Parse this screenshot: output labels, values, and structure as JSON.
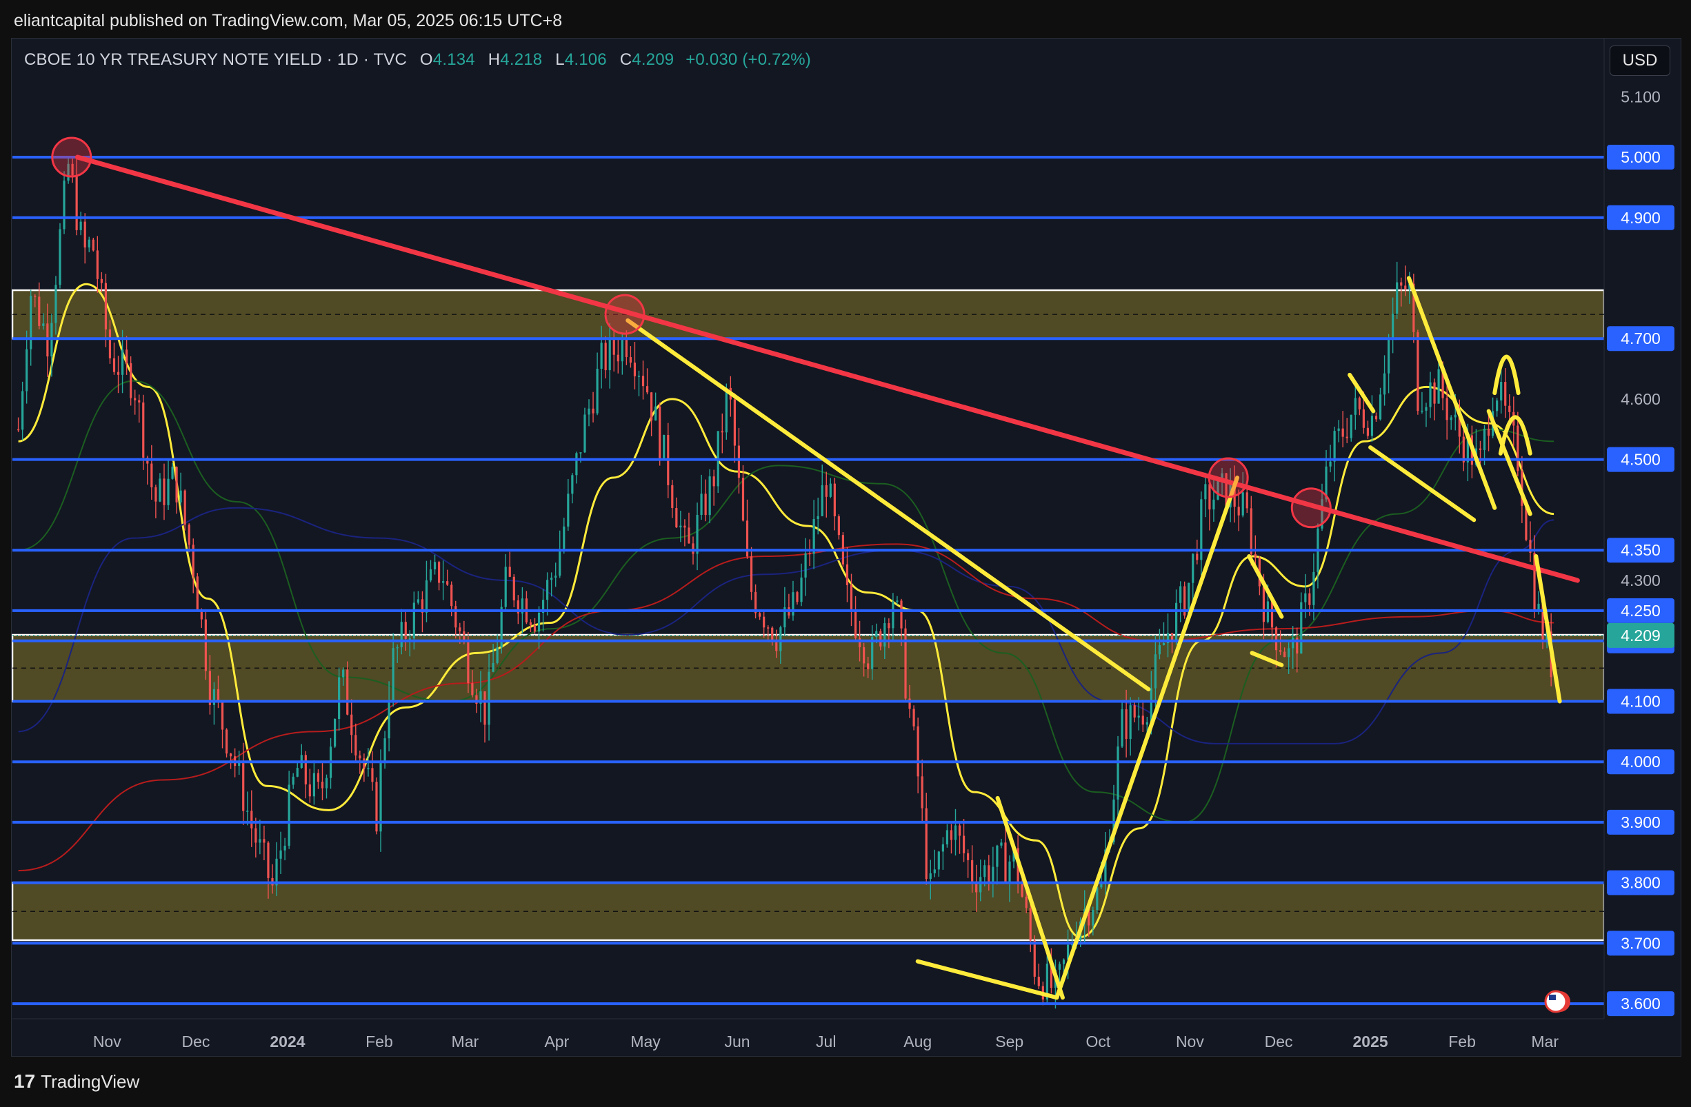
{
  "header": {
    "published_text": "eliantcapital published on TradingView.com, Mar 05, 2025 06:15 UTC+8"
  },
  "legend": {
    "symbol": "CBOE 10 YR TREASURY NOTE YIELD · 1D · TVC",
    "open_label": "O",
    "open_value": "4.134",
    "high_label": "H",
    "high_value": "4.218",
    "low_label": "L",
    "low_value": "4.106",
    "close_label": "C",
    "close_value": "4.209",
    "change_value": "+0.030 (+0.72%)"
  },
  "currency_button": "USD",
  "footer": {
    "logo_mark": "17",
    "logo_text": "TradingView"
  },
  "colors": {
    "background": "#131722",
    "up": "#26a69a",
    "down": "#ef5350",
    "level_line": "#2962ff",
    "trendline_red": "#f23645",
    "annotation_yellow": "#ffeb3b",
    "zone_fill": "#5c5426",
    "last_price": "#26a69a"
  },
  "icons": {
    "flag": "us-flag-icon"
  },
  "chart_data": {
    "type": "candlestick",
    "title": "CBOE 10 YR TREASURY NOTE YIELD",
    "interval": "1D",
    "ylim": [
      3.575,
      5.195
    ],
    "y_ticks": [
      "5.100",
      "4.600",
      "4.300"
    ],
    "x_ticks": [
      {
        "label": "Nov",
        "date": "2023-11-01",
        "bold": false
      },
      {
        "label": "Dec",
        "date": "2023-12-01",
        "bold": false
      },
      {
        "label": "2024",
        "date": "2024-01-01",
        "bold": true
      },
      {
        "label": "Feb",
        "date": "2024-02-01",
        "bold": false
      },
      {
        "label": "Mar",
        "date": "2024-03-01",
        "bold": false
      },
      {
        "label": "Apr",
        "date": "2024-04-01",
        "bold": false
      },
      {
        "label": "May",
        "date": "2024-05-01",
        "bold": false
      },
      {
        "label": "Jun",
        "date": "2024-06-01",
        "bold": false
      },
      {
        "label": "Jul",
        "date": "2024-07-01",
        "bold": false
      },
      {
        "label": "Aug",
        "date": "2024-08-01",
        "bold": false
      },
      {
        "label": "Sep",
        "date": "2024-09-01",
        "bold": false
      },
      {
        "label": "Oct",
        "date": "2024-10-01",
        "bold": false
      },
      {
        "label": "Nov",
        "date": "2024-11-01",
        "bold": false
      },
      {
        "label": "Dec",
        "date": "2024-12-01",
        "bold": false
      },
      {
        "label": "2025",
        "date": "2025-01-01",
        "bold": true
      },
      {
        "label": "Feb",
        "date": "2025-02-01",
        "bold": false
      },
      {
        "label": "Mar",
        "date": "2025-03-01",
        "bold": false
      }
    ],
    "horizontal_levels": [
      {
        "value": 5.0,
        "label": "5.000"
      },
      {
        "value": 4.9,
        "label": "4.900"
      },
      {
        "value": 4.7,
        "label": "4.700"
      },
      {
        "value": 4.5,
        "label": "4.500"
      },
      {
        "value": 4.35,
        "label": "4.350"
      },
      {
        "value": 4.25,
        "label": "4.250"
      },
      {
        "value": 4.2,
        "label": "4.200"
      },
      {
        "value": 4.1,
        "label": "4.100"
      },
      {
        "value": 4.0,
        "label": "4.000"
      },
      {
        "value": 3.9,
        "label": "3.900"
      },
      {
        "value": 3.8,
        "label": "3.800"
      },
      {
        "value": 3.7,
        "label": "3.700"
      },
      {
        "value": 3.6,
        "label": "3.600"
      }
    ],
    "zones": [
      {
        "top": 4.78,
        "bottom": 4.7
      },
      {
        "top": 4.21,
        "bottom": 4.1
      },
      {
        "top": 3.8,
        "bottom": 3.705
      }
    ],
    "last_price": {
      "value": 4.209,
      "label": "4.209"
    },
    "close_path": [
      [
        "2023-10-02",
        4.55
      ],
      [
        "2023-10-06",
        4.78
      ],
      [
        "2023-10-12",
        4.7
      ],
      [
        "2023-10-19",
        4.99
      ],
      [
        "2023-10-24",
        4.84
      ],
      [
        "2023-10-27",
        4.86
      ],
      [
        "2023-11-02",
        4.67
      ],
      [
        "2023-11-10",
        4.63
      ],
      [
        "2023-11-17",
        4.43
      ],
      [
        "2023-11-24",
        4.47
      ],
      [
        "2023-11-30",
        4.33
      ],
      [
        "2023-12-06",
        4.12
      ],
      [
        "2023-12-13",
        4.02
      ],
      [
        "2023-12-20",
        3.89
      ],
      [
        "2023-12-27",
        3.79
      ],
      [
        "2024-01-04",
        3.99
      ],
      [
        "2024-01-12",
        3.94
      ],
      [
        "2024-01-19",
        4.14
      ],
      [
        "2024-01-31",
        3.91
      ],
      [
        "2024-02-05",
        4.16
      ],
      [
        "2024-02-14",
        4.26
      ],
      [
        "2024-02-22",
        4.32
      ],
      [
        "2024-03-01",
        4.18
      ],
      [
        "2024-03-08",
        4.08
      ],
      [
        "2024-03-15",
        4.3
      ],
      [
        "2024-03-25",
        4.24
      ],
      [
        "2024-04-01",
        4.33
      ],
      [
        "2024-04-10",
        4.55
      ],
      [
        "2024-04-16",
        4.66
      ],
      [
        "2024-04-25",
        4.7
      ],
      [
        "2024-05-01",
        4.63
      ],
      [
        "2024-05-08",
        4.49
      ],
      [
        "2024-05-15",
        4.34
      ],
      [
        "2024-05-24",
        4.47
      ],
      [
        "2024-05-29",
        4.62
      ],
      [
        "2024-06-05",
        4.29
      ],
      [
        "2024-06-14",
        4.21
      ],
      [
        "2024-06-21",
        4.26
      ],
      [
        "2024-07-01",
        4.47
      ],
      [
        "2024-07-08",
        4.27
      ],
      [
        "2024-07-16",
        4.17
      ],
      [
        "2024-07-24",
        4.28
      ],
      [
        "2024-08-01",
        3.98
      ],
      [
        "2024-08-05",
        3.78
      ],
      [
        "2024-08-12",
        3.9
      ],
      [
        "2024-08-20",
        3.81
      ],
      [
        "2024-08-27",
        3.83
      ],
      [
        "2024-09-03",
        3.84
      ],
      [
        "2024-09-10",
        3.65
      ],
      [
        "2024-09-17",
        3.62
      ],
      [
        "2024-09-24",
        3.74
      ],
      [
        "2024-10-02",
        3.79
      ],
      [
        "2024-10-09",
        4.06
      ],
      [
        "2024-10-17",
        4.09
      ],
      [
        "2024-10-24",
        4.21
      ],
      [
        "2024-10-31",
        4.28
      ],
      [
        "2024-11-06",
        4.43
      ],
      [
        "2024-11-13",
        4.45
      ],
      [
        "2024-11-20",
        4.41
      ],
      [
        "2024-11-27",
        4.24
      ],
      [
        "2024-12-05",
        4.17
      ],
      [
        "2024-12-11",
        4.27
      ],
      [
        "2024-12-18",
        4.5
      ],
      [
        "2024-12-26",
        4.58
      ],
      [
        "2025-01-02",
        4.57
      ],
      [
        "2025-01-10",
        4.77
      ],
      [
        "2025-01-14",
        4.79
      ],
      [
        "2025-01-17",
        4.61
      ],
      [
        "2025-01-24",
        4.62
      ],
      [
        "2025-01-31",
        4.54
      ],
      [
        "2025-02-07",
        4.49
      ],
      [
        "2025-02-12",
        4.63
      ],
      [
        "2025-02-20",
        4.5
      ],
      [
        "2025-02-26",
        4.26
      ],
      [
        "2025-03-03",
        4.16
      ],
      [
        "2025-03-04",
        4.209
      ]
    ],
    "moving_averages": [
      {
        "name": "",
        "color": "#ffeb3b",
        "points": [
          [
            "2023-10-02",
            4.53
          ],
          [
            "2023-10-25",
            4.79
          ],
          [
            "2023-11-15",
            4.62
          ],
          [
            "2023-12-05",
            4.27
          ],
          [
            "2023-12-25",
            3.96
          ],
          [
            "2024-01-15",
            3.92
          ],
          [
            "2024-02-10",
            4.09
          ],
          [
            "2024-03-05",
            4.18
          ],
          [
            "2024-03-30",
            4.23
          ],
          [
            "2024-04-20",
            4.47
          ],
          [
            "2024-05-10",
            4.6
          ],
          [
            "2024-06-01",
            4.48
          ],
          [
            "2024-06-25",
            4.39
          ],
          [
            "2024-07-15",
            4.28
          ],
          [
            "2024-08-01",
            4.25
          ],
          [
            "2024-08-20",
            3.95
          ],
          [
            "2024-09-10",
            3.87
          ],
          [
            "2024-09-25",
            3.71
          ],
          [
            "2024-10-15",
            3.89
          ],
          [
            "2024-11-05",
            4.2
          ],
          [
            "2024-11-22",
            4.34
          ],
          [
            "2024-12-10",
            4.29
          ],
          [
            "2024-12-30",
            4.53
          ],
          [
            "2025-01-20",
            4.62
          ],
          [
            "2025-02-10",
            4.56
          ],
          [
            "2025-03-04",
            4.41
          ]
        ]
      },
      {
        "name": "",
        "color": "#1b5e20",
        "points": [
          [
            "2023-10-02",
            4.35
          ],
          [
            "2023-11-10",
            4.63
          ],
          [
            "2023-12-15",
            4.43
          ],
          [
            "2024-01-20",
            4.14
          ],
          [
            "2024-02-25",
            4.1
          ],
          [
            "2024-03-30",
            4.22
          ],
          [
            "2024-05-10",
            4.37
          ],
          [
            "2024-06-15",
            4.49
          ],
          [
            "2024-07-20",
            4.46
          ],
          [
            "2024-08-30",
            4.18
          ],
          [
            "2024-09-30",
            3.95
          ],
          [
            "2024-10-30",
            3.9
          ],
          [
            "2024-12-01",
            4.2
          ],
          [
            "2025-01-10",
            4.41
          ],
          [
            "2025-02-10",
            4.55
          ],
          [
            "2025-03-04",
            4.53
          ]
        ]
      },
      {
        "name": "",
        "color": "#1a237e",
        "points": [
          [
            "2023-10-02",
            4.05
          ],
          [
            "2023-11-10",
            4.37
          ],
          [
            "2023-12-15",
            4.42
          ],
          [
            "2024-02-01",
            4.37
          ],
          [
            "2024-03-15",
            4.3
          ],
          [
            "2024-04-25",
            4.21
          ],
          [
            "2024-06-10",
            4.31
          ],
          [
            "2024-07-25",
            4.35
          ],
          [
            "2024-09-01",
            4.29
          ],
          [
            "2024-10-05",
            4.1
          ],
          [
            "2024-11-10",
            4.03
          ],
          [
            "2024-12-20",
            4.03
          ],
          [
            "2025-01-25",
            4.18
          ],
          [
            "2025-02-20",
            4.35
          ],
          [
            "2025-03-04",
            4.4
          ]
        ]
      },
      {
        "name": "",
        "color": "#b71c1c",
        "points": [
          [
            "2023-10-02",
            3.82
          ],
          [
            "2023-11-20",
            3.97
          ],
          [
            "2024-01-10",
            4.05
          ],
          [
            "2024-03-01",
            4.13
          ],
          [
            "2024-04-20",
            4.25
          ],
          [
            "2024-06-10",
            4.34
          ],
          [
            "2024-07-25",
            4.36
          ],
          [
            "2024-09-10",
            4.27
          ],
          [
            "2024-10-20",
            4.2
          ],
          [
            "2024-12-01",
            4.22
          ],
          [
            "2025-01-15",
            4.24
          ],
          [
            "2025-02-10",
            4.25
          ],
          [
            "2025-03-04",
            4.23
          ]
        ]
      }
    ],
    "trendlines": [
      {
        "color": "#f23645",
        "from": [
          "2023-10-22",
          5.0
        ],
        "to": [
          "2025-03-12",
          4.3
        ]
      }
    ],
    "annotation_lines": [
      {
        "from": [
          "2024-04-25",
          4.73
        ],
        "to": [
          "2024-10-18",
          4.12
        ]
      },
      {
        "from": [
          "2024-08-01",
          3.67
        ],
        "to": [
          "2024-09-17",
          3.61
        ]
      },
      {
        "from": [
          "2024-09-17",
          3.61
        ],
        "to": [
          "2024-11-17",
          4.47
        ]
      },
      {
        "from": [
          "2024-08-28",
          3.94
        ],
        "to": [
          "2024-09-19",
          3.61
        ]
      },
      {
        "from": [
          "2024-11-21",
          4.34
        ],
        "to": [
          "2024-12-02",
          4.24
        ]
      },
      {
        "from": [
          "2024-11-22",
          4.18
        ],
        "to": [
          "2024-12-02",
          4.16
        ]
      },
      {
        "from": [
          "2024-12-25",
          4.64
        ],
        "to": [
          "2025-01-02",
          4.58
        ]
      },
      {
        "from": [
          "2025-01-01",
          4.52
        ],
        "to": [
          "2025-02-05",
          4.4
        ]
      },
      {
        "from": [
          "2025-01-14",
          4.8
        ],
        "to": [
          "2025-02-12",
          4.42
        ]
      },
      {
        "from": [
          "2025-02-10",
          4.58
        ],
        "to": [
          "2025-02-24",
          4.41
        ]
      },
      {
        "from": [
          "2025-02-26",
          4.34
        ],
        "to": [
          "2025-03-06",
          4.1
        ]
      }
    ],
    "annotation_arcs": [
      {
        "from": [
          "2025-02-12",
          4.61
        ],
        "peak": [
          "2025-02-16",
          4.67
        ],
        "to": [
          "2025-02-20",
          4.61
        ]
      },
      {
        "from": [
          "2025-02-14",
          4.51
        ],
        "peak": [
          "2025-02-19",
          4.57
        ],
        "to": [
          "2025-02-24",
          4.51
        ]
      }
    ],
    "circled_points": [
      [
        "2023-10-20",
        5.0
      ],
      [
        "2024-04-24",
        4.74
      ],
      [
        "2024-11-14",
        4.47
      ],
      [
        "2024-12-12",
        4.42
      ]
    ]
  }
}
